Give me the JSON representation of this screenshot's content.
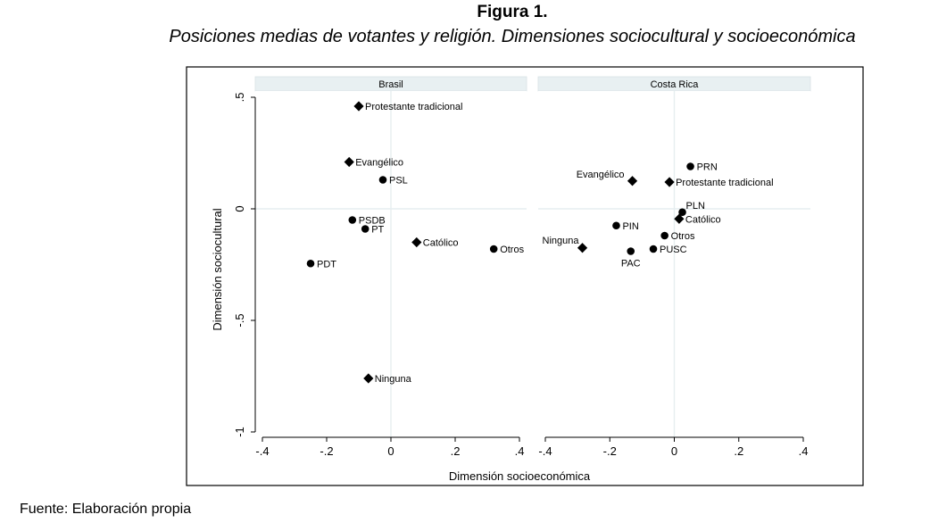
{
  "figure": {
    "title": "Figura 1.",
    "subtitle": "Posiciones medias de votantes y religión. Dimensiones sociocultural y socioeconómica",
    "source": "Fuente: Elaboración propia"
  },
  "chart_data": {
    "type": "scatter",
    "xlabel": "Dimensión socioeconómica",
    "ylabel": "Dimensión sociocultural",
    "xlim": [
      -0.4,
      0.4
    ],
    "ylim": [
      -1,
      0.5
    ],
    "x_ticks": [
      -0.4,
      -0.2,
      0,
      0.2,
      0.4
    ],
    "x_tick_labels": [
      "-.4",
      "-.2",
      "0",
      ".2",
      ".4"
    ],
    "y_ticks": [
      0.5,
      0,
      -0.5,
      -1
    ],
    "y_tick_labels": [
      ".5",
      "0",
      "-.5",
      "-1"
    ],
    "reference_lines": {
      "x": 0,
      "y": 0
    },
    "marker_legend": {
      "diamond": "religion",
      "circle": "party"
    },
    "panels": [
      {
        "name": "Brasil",
        "points": [
          {
            "label": "Protestante tradicional",
            "x": -0.1,
            "y": 0.46,
            "marker": "diamond",
            "label_pos": "right"
          },
          {
            "label": "Evangélico",
            "x": -0.13,
            "y": 0.21,
            "marker": "diamond",
            "label_pos": "right"
          },
          {
            "label": "PSL",
            "x": -0.025,
            "y": 0.13,
            "marker": "circle",
            "label_pos": "right"
          },
          {
            "label": "PSDB",
            "x": -0.12,
            "y": -0.05,
            "marker": "circle",
            "label_pos": "right"
          },
          {
            "label": "PT",
            "x": -0.08,
            "y": -0.09,
            "marker": "circle",
            "label_pos": "right"
          },
          {
            "label": "Católico",
            "x": 0.08,
            "y": -0.15,
            "marker": "diamond",
            "label_pos": "right"
          },
          {
            "label": "Otros",
            "x": 0.32,
            "y": -0.18,
            "marker": "circle",
            "label_pos": "right"
          },
          {
            "label": "PDT",
            "x": -0.25,
            "y": -0.245,
            "marker": "circle",
            "label_pos": "right"
          },
          {
            "label": "Ninguna",
            "x": -0.07,
            "y": -0.76,
            "marker": "diamond",
            "label_pos": "right"
          }
        ]
      },
      {
        "name": "Costa Rica",
        "points": [
          {
            "label": "PRN",
            "x": 0.05,
            "y": 0.19,
            "marker": "circle",
            "label_pos": "right"
          },
          {
            "label": "Evangélico",
            "x": -0.13,
            "y": 0.125,
            "marker": "diamond",
            "label_pos": "left"
          },
          {
            "label": "Protestante tradicional",
            "x": -0.015,
            "y": 0.12,
            "marker": "diamond",
            "label_pos": "right"
          },
          {
            "label": "PLN",
            "x": 0.025,
            "y": -0.015,
            "marker": "circle",
            "label_pos": "top-right"
          },
          {
            "label": "Católico",
            "x": 0.015,
            "y": -0.045,
            "marker": "diamond",
            "label_pos": "right"
          },
          {
            "label": "PIN",
            "x": -0.18,
            "y": -0.075,
            "marker": "circle",
            "label_pos": "right"
          },
          {
            "label": "Otros",
            "x": -0.03,
            "y": -0.12,
            "marker": "circle",
            "label_pos": "right"
          },
          {
            "label": "Ninguna",
            "x": -0.285,
            "y": -0.175,
            "marker": "diamond",
            "label_pos": "left-top"
          },
          {
            "label": "PUSC",
            "x": -0.065,
            "y": -0.18,
            "marker": "circle",
            "label_pos": "right"
          },
          {
            "label": "PAC",
            "x": -0.135,
            "y": -0.19,
            "marker": "circle",
            "label_pos": "bottom"
          }
        ]
      }
    ]
  }
}
